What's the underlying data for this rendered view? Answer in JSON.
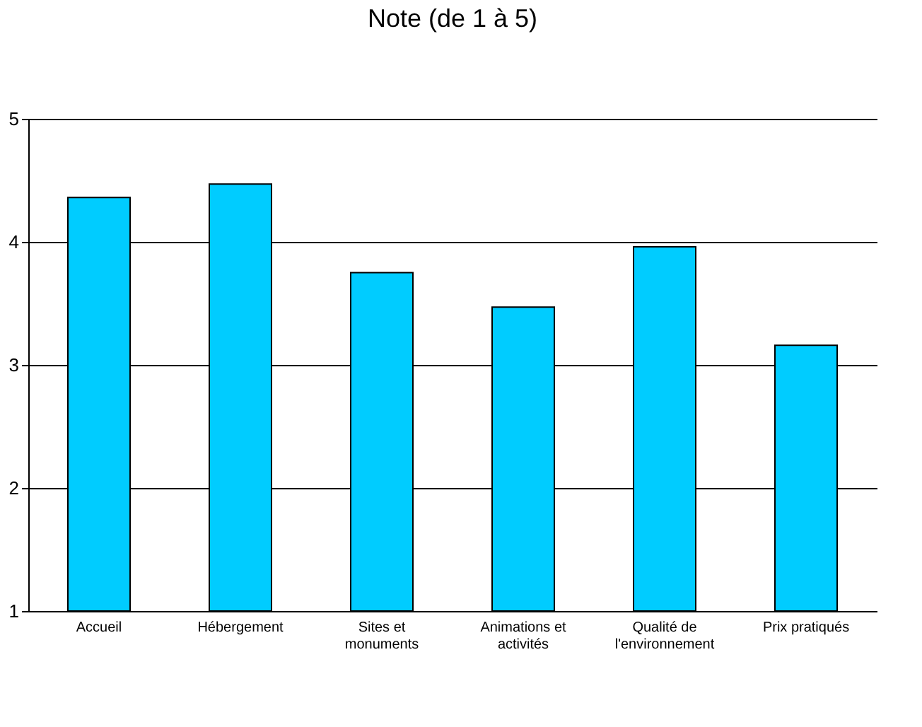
{
  "chart_data": {
    "type": "bar",
    "title": "Note (de 1 à 5)",
    "categories": [
      "Accueil",
      "Hébergement",
      "Sites et\nmonuments",
      "Animations et\nactivités",
      "Qualité de\nl'environnement",
      "Prix pratiqués"
    ],
    "values": [
      4.36,
      4.47,
      3.75,
      3.47,
      3.96,
      3.16
    ],
    "color": "#00ccff",
    "ylim": [
      1,
      5
    ],
    "yticks": [
      1,
      2,
      3,
      4,
      5
    ],
    "grid": "y"
  }
}
